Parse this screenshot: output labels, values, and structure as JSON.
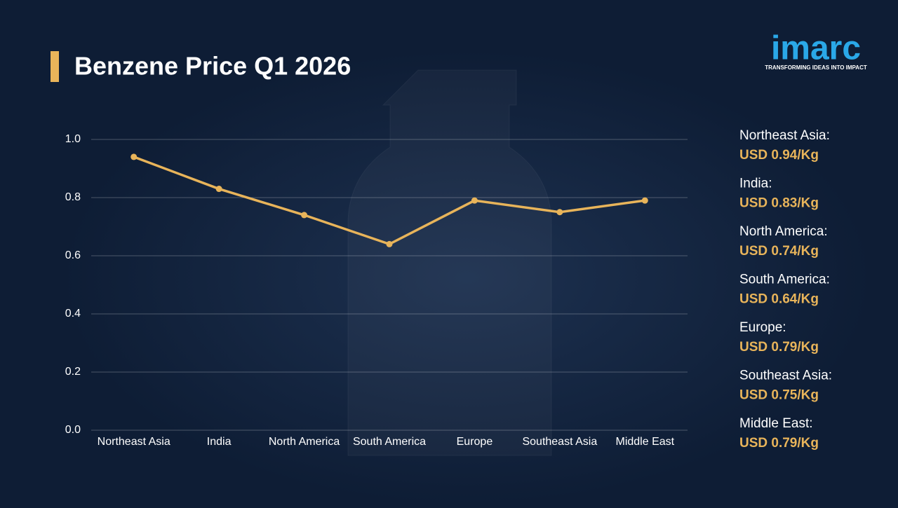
{
  "chart_data": {
    "type": "line",
    "title": "Benzene Price Q1 2026",
    "categories": [
      "Northeast Asia",
      "India",
      "North America",
      "South America",
      "Europe",
      "Southeast Asia",
      "Middle East"
    ],
    "values": [
      0.94,
      0.83,
      0.74,
      0.64,
      0.79,
      0.75,
      0.79
    ],
    "value_labels": [
      "USD 0.94/Kg",
      "USD 0.83/Kg",
      "USD 0.74/Kg",
      "USD 0.64/Kg",
      "USD 0.79/Kg",
      "USD 0.75/Kg",
      "USD 0.79/Kg"
    ],
    "legend_labels": [
      "Northeast Asia:",
      "India:",
      "North America:",
      "South America:",
      "Europe:",
      "Southeast Asia:",
      "Middle East:"
    ],
    "color": "#e8b45a",
    "ylim": [
      0,
      1
    ],
    "yticks": [
      {
        "value": 0,
        "label": "0.0"
      },
      0.2,
      0.4,
      0.6,
      0.8,
      {
        "value": 1,
        "label": "1.0"
      }
    ],
    "grid": true
  },
  "brand": {
    "name": "imarc",
    "tagline": "TRANSFORMING IDEAS INTO IMPACT"
  }
}
